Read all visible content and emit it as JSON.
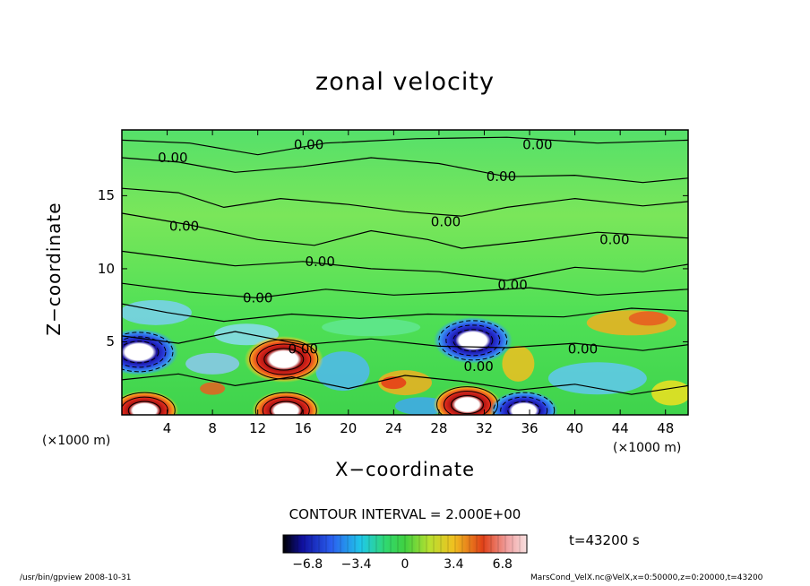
{
  "chart_data": {
    "type": "heatmap",
    "title": "zonal velocity",
    "xlabel": "X−coordinate",
    "ylabel": "Z−coordinate",
    "x_unit_left": "(×1000 m)",
    "x_unit_right": "(×1000 m)",
    "xlim": [
      0,
      50
    ],
    "ylim": [
      0,
      19.5
    ],
    "x_ticks": [
      "4",
      "8",
      "12",
      "16",
      "20",
      "24",
      "28",
      "32",
      "36",
      "40",
      "44",
      "48"
    ],
    "x_tick_values": [
      4,
      8,
      12,
      16,
      20,
      24,
      28,
      32,
      36,
      40,
      44,
      48
    ],
    "y_ticks": [
      "5",
      "10",
      "15"
    ],
    "y_tick_values": [
      5,
      10,
      15
    ],
    "contour_interval_text": "CONTOUR INTERVAL = 2.000E+00",
    "contour_labels": [
      {
        "text": "0.00",
        "x": 4.5,
        "z": 17.6
      },
      {
        "text": "0.00",
        "x": 16.5,
        "z": 18.5
      },
      {
        "text": "0.00",
        "x": 36.7,
        "z": 18.5
      },
      {
        "text": "0.00",
        "x": 33.5,
        "z": 16.3
      },
      {
        "text": "0.00",
        "x": 5.5,
        "z": 12.9
      },
      {
        "text": "0.00",
        "x": 28.6,
        "z": 13.2
      },
      {
        "text": "0.00",
        "x": 17.5,
        "z": 10.5
      },
      {
        "text": "0.00",
        "x": 43.5,
        "z": 12.0
      },
      {
        "text": "0.00",
        "x": 12.0,
        "z": 8.0
      },
      {
        "text": "0.00",
        "x": 34.5,
        "z": 8.9
      },
      {
        "text": "0.00",
        "x": 16.0,
        "z": 4.5
      },
      {
        "text": "0.00",
        "x": 40.7,
        "z": 4.5
      },
      {
        "text": "0.00",
        "x": 31.5,
        "z": 3.3
      }
    ],
    "extrema": [
      {
        "x": 1.5,
        "z": 4.3,
        "sign": "negative"
      },
      {
        "x": 14.3,
        "z": 3.8,
        "sign": "positive"
      },
      {
        "x": 31.0,
        "z": 5.1,
        "sign": "negative"
      },
      {
        "x": 30.5,
        "z": 0.7,
        "sign": "positive"
      },
      {
        "x": 2.0,
        "z": 0.3,
        "sign": "positive"
      },
      {
        "x": 14.5,
        "z": 0.3,
        "sign": "positive"
      },
      {
        "x": 35.5,
        "z": 0.3,
        "sign": "negative"
      }
    ],
    "colorbar": {
      "ticks": [
        "−6.8",
        "−3.4",
        "0",
        "3.4",
        "6.8"
      ],
      "tick_values": [
        -6.8,
        -3.4,
        0,
        3.4,
        6.8
      ],
      "range": [
        -8.5,
        8.5
      ]
    },
    "time_text": "t=43200 s"
  },
  "footer": {
    "left": "/usr/bin/gpview   2008-10-31",
    "right": "MarsCond_VelX.nc@VelX,x=0:50000,z=0:20000,t=43200"
  },
  "colors": {
    "positive": "#e0201c",
    "negative": "#1c2fd0",
    "background": "#4cd94c"
  }
}
